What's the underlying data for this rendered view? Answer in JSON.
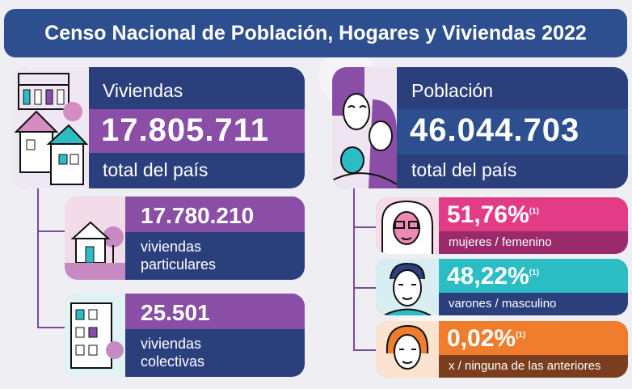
{
  "title": "Censo Nacional de Población, Hogares y Viviendas 2022",
  "viviendas": {
    "label": "Viviendas",
    "total": "17.805.711",
    "caption": "total del país",
    "particulares": {
      "value": "17.780.210",
      "line1": "viviendas",
      "line2": "particulares"
    },
    "colectivas": {
      "value": "25.501",
      "line1": "viviendas",
      "line2": "colectivas"
    }
  },
  "poblacion": {
    "label": "Población",
    "total": "46.044.703",
    "caption": "total del país",
    "mujeres": {
      "value": "51,76%",
      "note": "(1)",
      "caption": "mujeres / femenino"
    },
    "varones": {
      "value": "48,22%",
      "note": "(1)",
      "caption": "varones / masculino"
    },
    "otros": {
      "value": "0,02%",
      "note": "(1)",
      "caption": "x / ninguna de las anteriores"
    }
  },
  "colors": {
    "navy": "#2c3f7d",
    "purple": "#8a4ea6",
    "pink": "#d6367f",
    "teal": "#2bbcc4",
    "orange": "#ef7d2d",
    "dark_brown": "#7a3e1e"
  },
  "icons": [
    "buildings-illustration",
    "people-illustration",
    "house-illustration",
    "apartment-illustration",
    "woman-face-icon",
    "man-face-icon",
    "person-face-icon"
  ]
}
